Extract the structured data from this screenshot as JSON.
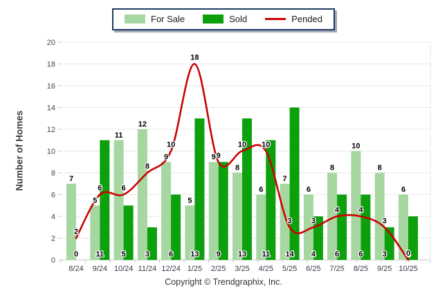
{
  "legend": {
    "items": [
      {
        "label": "For Sale",
        "swatch": "bar",
        "color": "#a6d7a0"
      },
      {
        "label": "Sold",
        "swatch": "bar",
        "color": "#0ca00c"
      },
      {
        "label": "Pended",
        "swatch": "line",
        "color": "#cc0000"
      }
    ]
  },
  "y_axis": {
    "title": "Number of Homes"
  },
  "footer": {
    "text": "Copyright © Trendgraphix, Inc."
  },
  "chart_data": {
    "type": "bar",
    "title": "",
    "xlabel": "",
    "ylabel": "Number of Homes",
    "categories": [
      "8/24",
      "9/24",
      "10/24",
      "11/24",
      "12/24",
      "1/25",
      "2/25",
      "3/25",
      "4/25",
      "5/25",
      "6/25",
      "7/25",
      "8/25",
      "9/25",
      "10/25"
    ],
    "series": [
      {
        "name": "For Sale",
        "type": "bar",
        "color": "#a6d7a0",
        "values": [
          7,
          5,
          11,
          12,
          9,
          5,
          9,
          8,
          6,
          7,
          6,
          8,
          10,
          8,
          6
        ]
      },
      {
        "name": "Sold",
        "type": "bar",
        "color": "#0ca00c",
        "values": [
          0,
          11,
          5,
          3,
          6,
          13,
          9,
          13,
          11,
          14,
          4,
          6,
          6,
          3,
          4
        ]
      },
      {
        "name": "Pended",
        "type": "line",
        "color": "#cc0000",
        "values": [
          2,
          6,
          6,
          8,
          10,
          18,
          9,
          10,
          10,
          3,
          3,
          4,
          4,
          3,
          0
        ]
      }
    ],
    "ylim": [
      0,
      20
    ],
    "yticks": [
      0,
      2,
      4,
      6,
      8,
      10,
      12,
      14,
      16,
      18,
      20
    ],
    "grid": true,
    "legend_position": "top-center",
    "gridline_color": "#e7e7e7",
    "axis_line_color": "#c4c4c4",
    "tick_color": "#c4c4c4",
    "y_tick_label_color": "#444444",
    "x_tick_label_color": "#333a45",
    "value_label_color": "#000000"
  }
}
